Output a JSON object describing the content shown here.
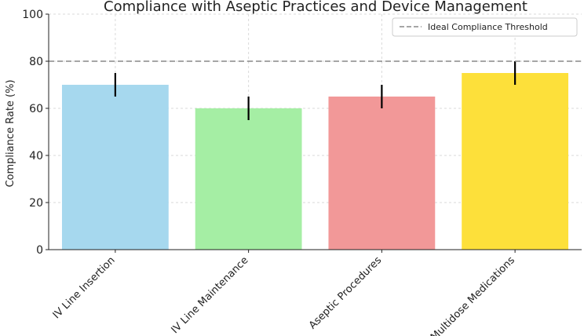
{
  "chart_data": {
    "type": "bar",
    "title": "Compliance with Aseptic Practices and Device Management",
    "xlabel": "",
    "ylabel": "Compliance Rate (%)",
    "ylim": [
      0,
      100
    ],
    "yticks": [
      0,
      20,
      40,
      60,
      80,
      100
    ],
    "categories": [
      "IV Line Insertion",
      "IV Line Maintenance",
      "Aseptic Procedures",
      "Multidose Medications"
    ],
    "values": [
      70,
      60,
      65,
      75
    ],
    "errors": [
      5,
      5,
      5,
      5
    ],
    "colors": [
      "#a6d8ee",
      "#a5eea4",
      "#f29898",
      "#fde03a"
    ],
    "error_color": "#000000",
    "grid": true,
    "reference_line": {
      "value": 80,
      "label": "Ideal Compliance Threshold",
      "color": "#888888",
      "style": "dashed"
    },
    "legend": {
      "placement": "top-right"
    }
  }
}
